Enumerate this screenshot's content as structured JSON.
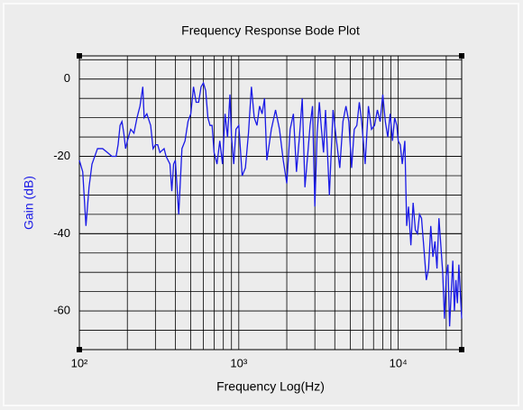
{
  "chart_data": {
    "type": "line",
    "title": "Frequency Response Bode Plot",
    "x_label": "Frequency Log(Hz)",
    "y_label": "Gain (dB)",
    "y_label_color": "#1a1ae6",
    "x_log": true,
    "grid": true,
    "y_grid_step": 5,
    "xlim": [
      100,
      25000
    ],
    "ylim": [
      -70,
      6
    ],
    "xticks": [
      {
        "value": 100,
        "label": "10²"
      },
      {
        "value": 1000,
        "label": "10³"
      },
      {
        "value": 10000,
        "label": "10⁴"
      }
    ],
    "yticks": [
      -60,
      -40,
      -20,
      0
    ],
    "color": "#1a1ae6",
    "x": [
      100,
      105,
      110,
      115,
      120,
      130,
      140,
      150,
      160,
      170,
      175,
      180,
      185,
      190,
      195,
      200,
      210,
      220,
      230,
      240,
      250,
      255,
      265,
      280,
      290,
      300,
      310,
      320,
      340,
      350,
      370,
      380,
      390,
      400,
      420,
      440,
      460,
      480,
      500,
      520,
      540,
      560,
      580,
      600,
      620,
      640,
      660,
      680,
      700,
      730,
      760,
      790,
      820,
      850,
      880,
      900,
      930,
      960,
      1000,
      1050,
      1100,
      1150,
      1200,
      1250,
      1300,
      1350,
      1400,
      1450,
      1500,
      1550,
      1600,
      1700,
      1800,
      1900,
      2000,
      2100,
      2200,
      2300,
      2400,
      2500,
      2600,
      2700,
      2800,
      2900,
      3000,
      3100,
      3200,
      3300,
      3400,
      3500,
      3700,
      3900,
      4100,
      4300,
      4500,
      4700,
      4900,
      5100,
      5300,
      5500,
      5700,
      5900,
      6200,
      6500,
      6800,
      7100,
      7400,
      7700,
      8000,
      8300,
      8600,
      8900,
      9200,
      9500,
      9800,
      10000,
      10300,
      10600,
      11000,
      11300,
      11600,
      12000,
      12400,
      12800,
      13200,
      13600,
      14000,
      14500,
      15000,
      15500,
      16000,
      16500,
      17000,
      17500,
      18000,
      18500,
      19000,
      19500,
      20000,
      20500,
      21000,
      21500,
      22000,
      22500,
      23000,
      23500,
      24000,
      24500,
      25000
    ],
    "values": [
      -21,
      -24,
      -38,
      -28,
      -22,
      -18,
      -18,
      -19,
      -20,
      -20,
      -17,
      -12,
      -11,
      -14,
      -18,
      -16,
      -13,
      -14,
      -10,
      -7,
      -2,
      -10,
      -9,
      -12,
      -18,
      -17,
      -17,
      -19,
      -18,
      -20,
      -22,
      -29,
      -22,
      -21,
      -35,
      -18,
      -16,
      -11,
      -9,
      -2,
      -6,
      -6,
      -2,
      -1,
      -3,
      -10,
      -12,
      -12,
      -19,
      -22,
      -16,
      -22,
      -9,
      -15,
      -4,
      -15,
      -22,
      -13,
      -12,
      -25,
      -23,
      -14,
      -2,
      -10,
      -12,
      -7,
      -9,
      -5,
      -21,
      -17,
      -13,
      -8,
      -13,
      -21,
      -27,
      -13,
      -9,
      -24,
      -15,
      -5,
      -28,
      -20,
      -12,
      -7,
      -33,
      -14,
      -6,
      -13,
      -19,
      -8,
      -30,
      -8,
      -16,
      -23,
      -11,
      -7,
      -11,
      -23,
      -13,
      -12,
      -6,
      -11,
      -22,
      -7,
      -13,
      -12,
      -8,
      -11,
      -4,
      -11,
      -15,
      -9,
      -16,
      -10,
      -12,
      -16,
      -17,
      -22,
      -16,
      -38,
      -33,
      -43,
      -32,
      -39,
      -40,
      -35,
      -36,
      -44,
      -52,
      -49,
      -38,
      -46,
      -42,
      -49,
      -36,
      -43,
      -50,
      -62,
      -51,
      -48,
      -64,
      -55,
      -47,
      -60,
      -52,
      -58,
      -48,
      -55,
      -62
    ]
  }
}
